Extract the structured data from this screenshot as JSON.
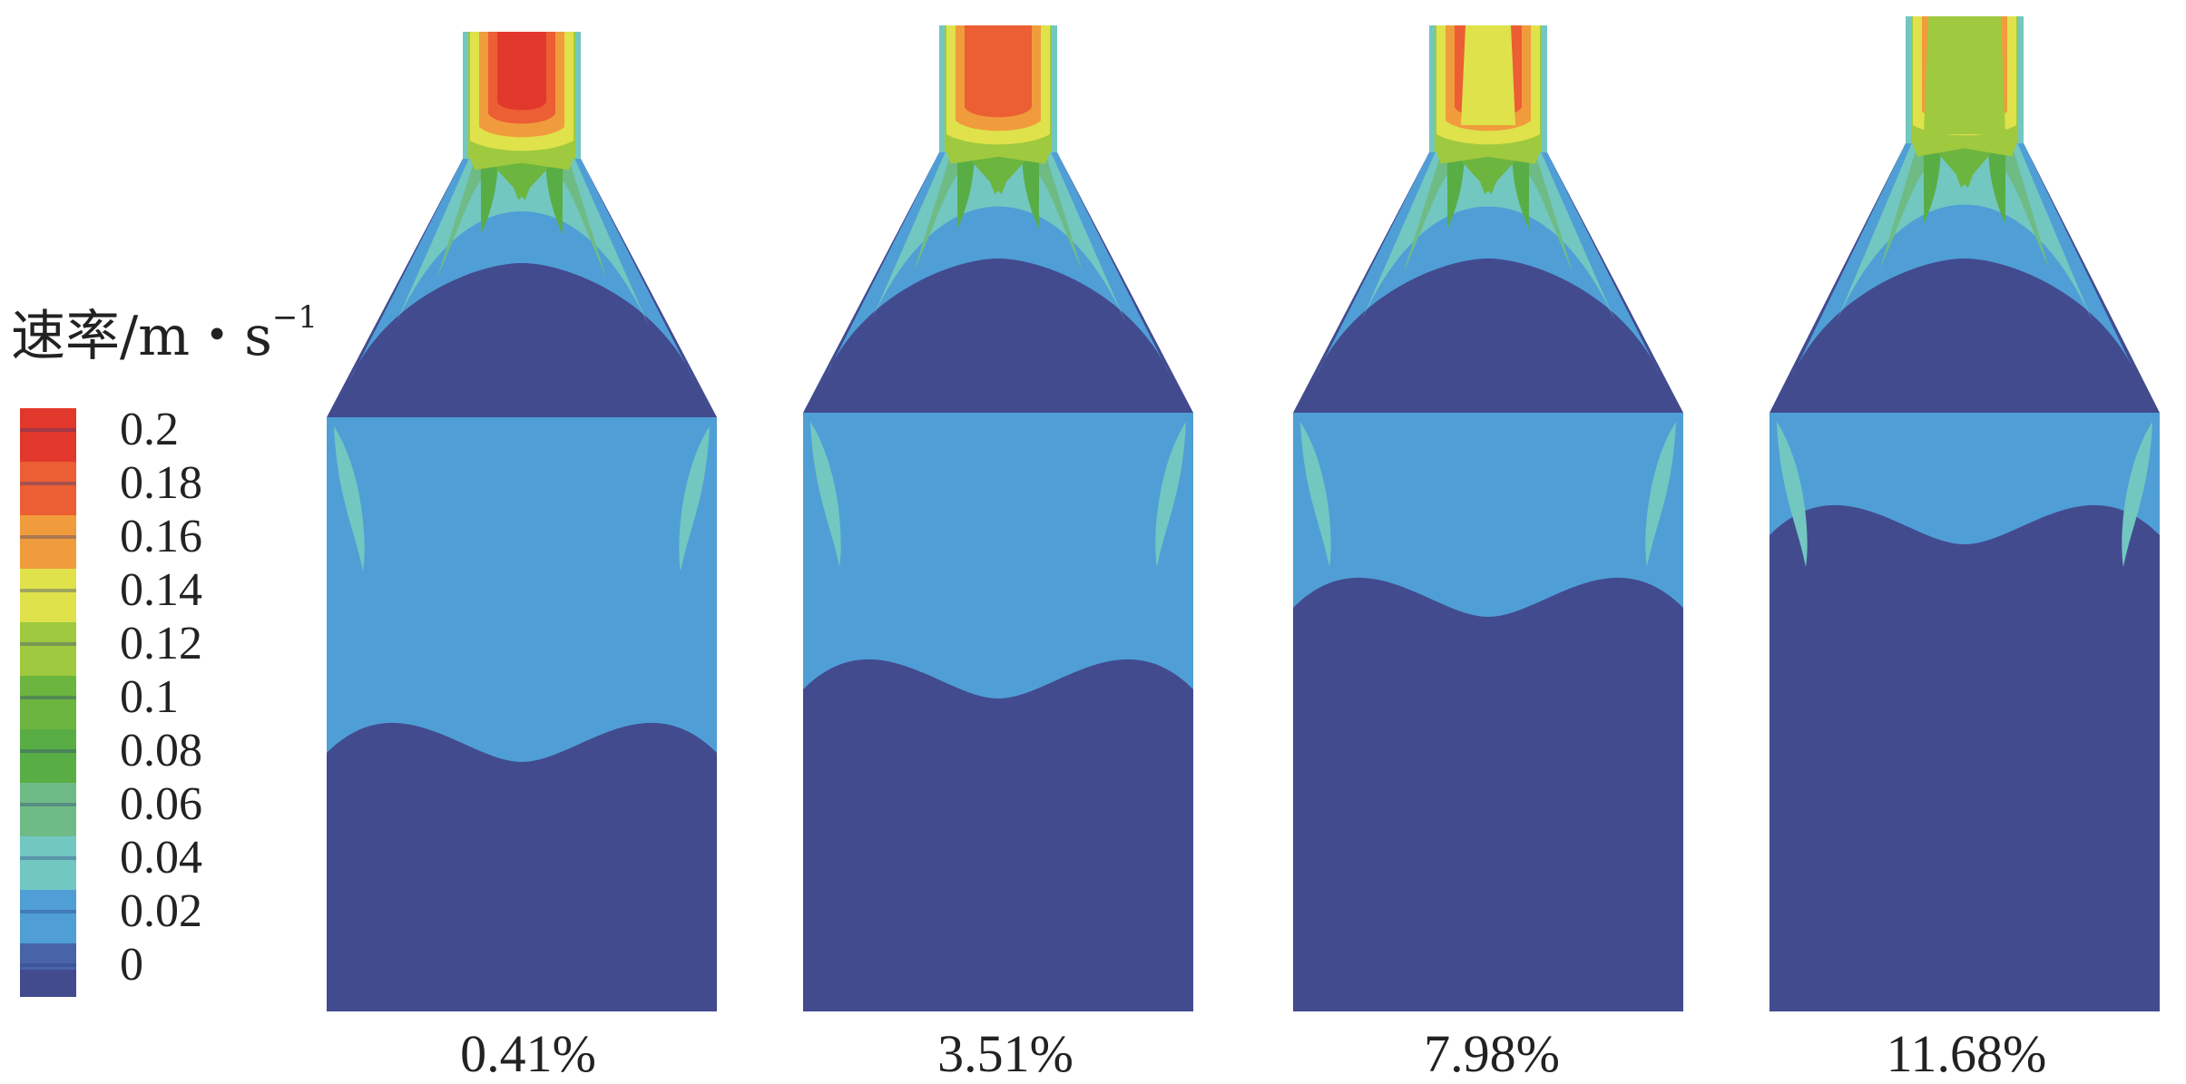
{
  "legend": {
    "title_text": "速率/m・s",
    "title_superscript": "−1",
    "levels": [
      {
        "label": "0.2",
        "color": "#e2382c"
      },
      {
        "label": "0.18",
        "color": "#ec5e34"
      },
      {
        "label": "0.16",
        "color": "#f19c3c"
      },
      {
        "label": "0.14",
        "color": "#dfe24b"
      },
      {
        "label": "0.12",
        "color": "#9fc93e"
      },
      {
        "label": "0.1",
        "color": "#6cb53f"
      },
      {
        "label": "0.08",
        "color": "#59ad45"
      },
      {
        "label": "0.06",
        "color": "#6fbb86"
      },
      {
        "label": "0.04",
        "color": "#72c7c1"
      },
      {
        "label": "0.02",
        "color": "#4f9fd6"
      },
      {
        "label": "0",
        "color": "#4764a8"
      }
    ],
    "base_color": "#434b8f",
    "separator_color": "#2b3a7a"
  },
  "panels": [
    {
      "label": "0.41%",
      "jet": "wide"
    },
    {
      "label": "3.51%",
      "jet": "medium"
    },
    {
      "label": "7.98%",
      "jet": "yellow-core"
    },
    {
      "label": "11.68%",
      "jet": "split"
    }
  ]
}
